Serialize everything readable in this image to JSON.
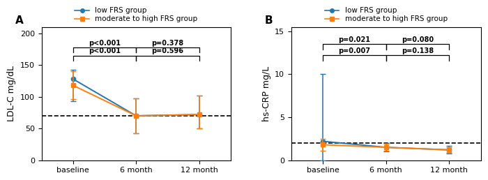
{
  "chart_data": [
    {
      "type": "line",
      "title": "A",
      "y_label": "LDL-C mg/dL",
      "categories": [
        "baseline",
        "6 month",
        "12 month"
      ],
      "ylim": [
        0,
        210
      ],
      "yticks": [
        0,
        50,
        100,
        150,
        200
      ],
      "reference_line": 70,
      "legend": "upper center",
      "series": [
        {
          "name": "low FRS group",
          "marker": "circle",
          "values": [
            128,
            70,
            72
          ],
          "err_minus": [
            35,
            27,
            22
          ],
          "err_plus": [
            15,
            27,
            30
          ]
        },
        {
          "name": "moderate to high FRS group",
          "marker": "square",
          "values": [
            118,
            70,
            72
          ],
          "err_minus": [
            22,
            27,
            22
          ],
          "err_plus": [
            22,
            27,
            30
          ]
        }
      ],
      "annotations": [
        {
          "text": "p<0.001",
          "from": "baseline",
          "to": "6 month",
          "y": 178
        },
        {
          "text": "p=0.378",
          "from": "6 month",
          "to": "12 month",
          "y": 178
        },
        {
          "text": "p<0.001",
          "from": "baseline",
          "to": "6 month",
          "y": 165
        },
        {
          "text": "p=0.596",
          "from": "6 month",
          "to": "12 month",
          "y": 165
        }
      ]
    },
    {
      "type": "line",
      "title": "B",
      "y_label": "hs-CRP mg/L",
      "categories": [
        "baseline",
        "6 month",
        "12 month"
      ],
      "ylim": [
        0,
        15.5
      ],
      "yticks": [
        0,
        5,
        10,
        15
      ],
      "reference_line": 2,
      "legend": "upper center",
      "series": [
        {
          "name": "low FRS group",
          "marker": "circle",
          "values": [
            2.2,
            1.5,
            1.2
          ],
          "err_minus": [
            2.2,
            0.5,
            0.45
          ],
          "err_plus": [
            7.8,
            0.5,
            0.45
          ]
        },
        {
          "name": "moderate to high FRS group",
          "marker": "square",
          "values": [
            1.8,
            1.5,
            1.2
          ],
          "err_minus": [
            0.7,
            0.4,
            0.35
          ],
          "err_plus": [
            0.7,
            0.4,
            0.35
          ]
        }
      ],
      "annotations": [
        {
          "text": "p=0.021",
          "from": "baseline",
          "to": "6 month",
          "y": 13.5
        },
        {
          "text": "p=0.080",
          "from": "6 month",
          "to": "12 month",
          "y": 13.5
        },
        {
          "text": "p=0.007",
          "from": "baseline",
          "to": "6 month",
          "y": 12.2
        },
        {
          "text": "p=0.138",
          "from": "6 month",
          "to": "12 month",
          "y": 12.2
        }
      ]
    }
  ]
}
